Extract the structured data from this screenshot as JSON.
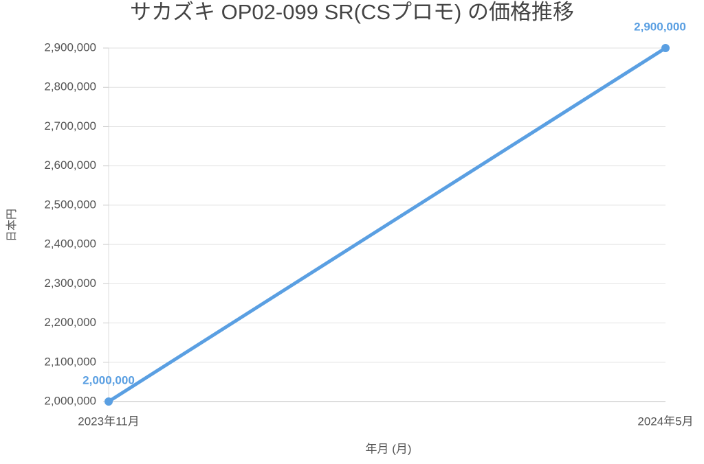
{
  "chart_data": {
    "type": "line",
    "title": "サカズキ OP02-099 SR(CSプロモ) の価格推移",
    "x_label": "年月 (月)",
    "y_label": "日本円",
    "categories": [
      "2023年11月",
      "2024年5月"
    ],
    "values": [
      2000000,
      2900000
    ],
    "value_labels": [
      "2,000,000",
      "2,900,000"
    ],
    "color": "#5a9fe2",
    "ylim": [
      2000000,
      2900000
    ],
    "yticks": [
      {
        "value": 2000000,
        "label": "2,000,000"
      },
      {
        "value": 2100000,
        "label": "2,100,000"
      },
      {
        "value": 2200000,
        "label": "2,200,000"
      },
      {
        "value": 2300000,
        "label": "2,300,000"
      },
      {
        "value": 2400000,
        "label": "2,400,000"
      },
      {
        "value": 2500000,
        "label": "2,500,000"
      },
      {
        "value": 2600000,
        "label": "2,600,000"
      },
      {
        "value": 2700000,
        "label": "2,700,000"
      },
      {
        "value": 2800000,
        "label": "2,800,000"
      },
      {
        "value": 2900000,
        "label": "2,900,000"
      }
    ],
    "grid": true
  }
}
